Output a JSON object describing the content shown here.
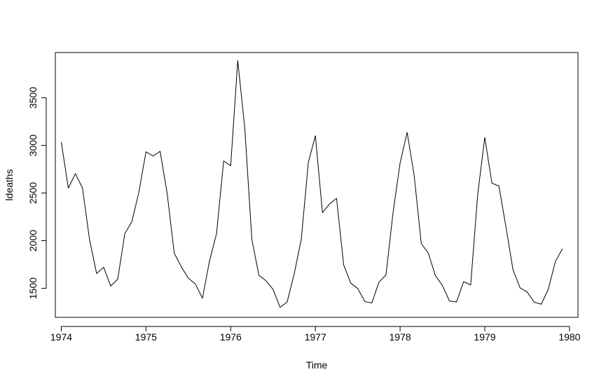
{
  "chart_data": {
    "type": "line",
    "title": "",
    "xlabel": "Time",
    "ylabel": "ldeaths",
    "xlim": [
      1973.93,
      1980.1
    ],
    "ylim": [
      1195,
      3975
    ],
    "x_ticks": [
      1974,
      1975,
      1976,
      1977,
      1978,
      1979,
      1980
    ],
    "x_tick_labels": [
      "1974",
      "1975",
      "1976",
      "1977",
      "1978",
      "1979",
      "1980"
    ],
    "y_ticks": [
      1500,
      2000,
      2500,
      3000,
      3500
    ],
    "y_tick_labels": [
      "1500",
      "2000",
      "2500",
      "3000",
      "3500"
    ],
    "grid": false,
    "legend": "none",
    "line_color": "#000000",
    "series": [
      {
        "start": 1974,
        "frequency": 12,
        "values": [
          3035,
          2552,
          2704,
          2554,
          2014,
          1655,
          1721,
          1524,
          1596,
          2074,
          2199,
          2512,
          2933,
          2889,
          2938,
          2497,
          1870,
          1726,
          1607,
          1545,
          1396,
          1787,
          2076,
          2837,
          2787,
          3891,
          3179,
          2011,
          1636,
          1580,
          1489,
          1300,
          1356,
          1653,
          2013,
          2823,
          3102,
          2294,
          2385,
          2444,
          1748,
          1554,
          1498,
          1361,
          1346,
          1564,
          1640,
          2293,
          2815,
          3137,
          2679,
          1969,
          1870,
          1633,
          1529,
          1366,
          1357,
          1570,
          1535,
          2491,
          3084,
          2605,
          2573,
          2143,
          1693,
          1504,
          1461,
          1354,
          1333,
          1492,
          1781,
          1915
        ]
      }
    ]
  }
}
